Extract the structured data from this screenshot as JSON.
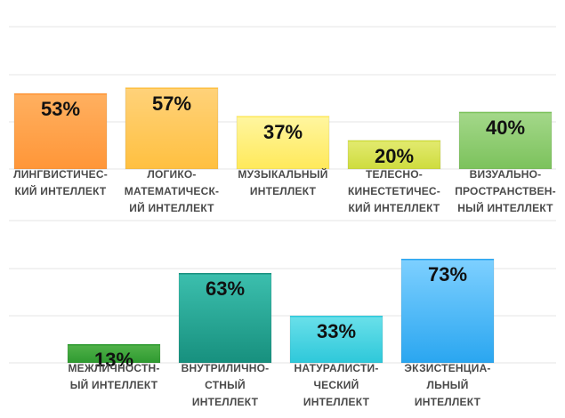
{
  "chart_data": [
    {
      "type": "bar",
      "categories": [
        [
          "ЛИНГВИСТИЧЕС-",
          "КИЙ ИНТЕЛЛЕКТ"
        ],
        [
          "ЛОГИКО-",
          "МАТЕМАТИЧЕСК-",
          "ИЙ ИНТЕЛЛЕКТ"
        ],
        [
          "МУЗЫКАЛЬНЫЙ",
          "ИНТЕЛЛЕКТ"
        ],
        [
          "ТЕЛЕСНО-",
          "КИНЕСТЕТИЧЕС-",
          "КИЙ ИНТЕЛЛЕКТ"
        ],
        [
          "ВИЗУАЛЬНО-",
          "ПРОСТРАНСТВЕН-",
          "НЫЙ ИНТЕЛЛЕКТ"
        ]
      ],
      "values": [
        53,
        57,
        37,
        20,
        40
      ],
      "value_labels": [
        "53%",
        "57%",
        "37%",
        "20%",
        "40%"
      ],
      "colors": [
        [
          "#ffb060",
          "#ff9638"
        ],
        [
          "#ffd27a",
          "#ffc040"
        ],
        [
          "#fff6a0",
          "#ffe95a"
        ],
        [
          "#e3ea70",
          "#cedc3e"
        ],
        [
          "#a4d88a",
          "#7cc25c"
        ]
      ],
      "ylim": [
        0,
        100
      ],
      "grid": true
    },
    {
      "type": "bar",
      "categories": [
        [
          "МЕЖЛИЧНОСТН-",
          "ЫЙ ИНТЕЛЛЕКТ"
        ],
        [
          "ВНУТРИЛИЧНО-",
          "СТНЫЙ",
          "ИНТЕЛЛЕКТ"
        ],
        [
          "НАТУРАЛИСТИ-",
          "ЧЕСКИЙ",
          "ИНТЕЛЛЕКТ"
        ],
        [
          "ЭКЗИСТЕНЦИА-",
          "ЛЬНЫЙ",
          "ИНТЕЛЛЕКТ"
        ]
      ],
      "values": [
        13,
        63,
        33,
        73
      ],
      "value_labels": [
        "13%",
        "63%",
        "33%",
        "73%"
      ],
      "colors": [
        [
          "#52b24a",
          "#2e9a30"
        ],
        [
          "#3cbfae",
          "#17907e"
        ],
        [
          "#6ae0ea",
          "#2ec8da"
        ],
        [
          "#7ed0ff",
          "#2aa6f0"
        ]
      ],
      "ylim": [
        0,
        100
      ],
      "grid": true
    }
  ]
}
